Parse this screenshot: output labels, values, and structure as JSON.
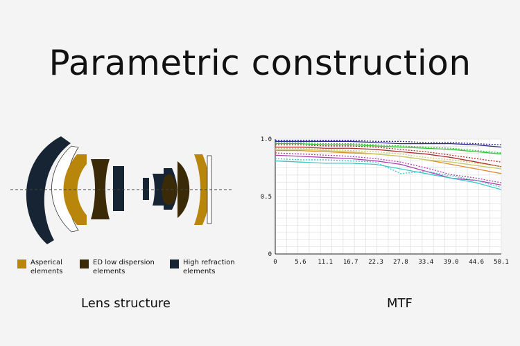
{
  "title": "Parametric construction",
  "legend": [
    {
      "label": "Asperical\nelements",
      "color": "#b8860b"
    },
    {
      "label": "ED low dispersion\nelements",
      "color": "#3a2a08"
    },
    {
      "label": "High refraction\nelements",
      "color": "#172433"
    }
  ],
  "captions": {
    "lens": "Lens structure",
    "mtf": "MTF"
  },
  "chart_data": {
    "type": "line",
    "title": "MTF",
    "x_ticks": [
      "0",
      "5.6",
      "11.1",
      "16.7",
      "22.3",
      "27.8",
      "33.4",
      "39.0",
      "44.6",
      "50.1"
    ],
    "y_ticks": [
      "0",
      "0.5",
      "1.0"
    ],
    "xlim": [
      0,
      50.1
    ],
    "ylim": [
      0,
      1.0
    ],
    "grid": true,
    "x": [
      0,
      5.6,
      11.1,
      16.7,
      22.3,
      27.8,
      33.4,
      39.0,
      44.6,
      50.1
    ],
    "series": [
      {
        "color": "#2e2a8c",
        "style": "solid",
        "values": [
          0.98,
          0.98,
          0.98,
          0.98,
          0.97,
          0.96,
          0.96,
          0.96,
          0.95,
          0.93
        ]
      },
      {
        "color": "#2e2a8c",
        "style": "dotted",
        "values": [
          0.99,
          0.99,
          0.99,
          0.99,
          0.98,
          0.98,
          0.97,
          0.97,
          0.96,
          0.95
        ]
      },
      {
        "color": "#35c23a",
        "style": "solid",
        "values": [
          0.96,
          0.96,
          0.95,
          0.95,
          0.94,
          0.93,
          0.92,
          0.91,
          0.89,
          0.87
        ]
      },
      {
        "color": "#35c23a",
        "style": "dotted",
        "values": [
          0.97,
          0.97,
          0.96,
          0.96,
          0.95,
          0.94,
          0.93,
          0.92,
          0.9,
          0.88
        ]
      },
      {
        "color": "#b02a2a",
        "style": "solid",
        "values": [
          0.93,
          0.93,
          0.92,
          0.92,
          0.91,
          0.89,
          0.87,
          0.84,
          0.8,
          0.76
        ]
      },
      {
        "color": "#b02a2a",
        "style": "dotted",
        "values": [
          0.95,
          0.95,
          0.94,
          0.94,
          0.93,
          0.91,
          0.89,
          0.86,
          0.83,
          0.8
        ]
      },
      {
        "color": "#e08a2a",
        "style": "solid",
        "values": [
          0.9,
          0.9,
          0.89,
          0.88,
          0.87,
          0.85,
          0.82,
          0.78,
          0.74,
          0.7
        ]
      },
      {
        "color": "#c8c86a",
        "style": "solid",
        "values": [
          0.91,
          0.91,
          0.9,
          0.89,
          0.87,
          0.85,
          0.82,
          0.8,
          0.77,
          0.74
        ]
      },
      {
        "color": "#c8c86a",
        "style": "dotted",
        "values": [
          0.92,
          0.92,
          0.91,
          0.9,
          0.89,
          0.87,
          0.84,
          0.82,
          0.79,
          0.76
        ]
      },
      {
        "color": "#b03ab0",
        "style": "solid",
        "values": [
          0.86,
          0.85,
          0.84,
          0.83,
          0.81,
          0.78,
          0.72,
          0.66,
          0.64,
          0.6
        ]
      },
      {
        "color": "#b03ab0",
        "style": "dotted",
        "values": [
          0.88,
          0.87,
          0.86,
          0.85,
          0.83,
          0.8,
          0.75,
          0.69,
          0.66,
          0.62
        ]
      },
      {
        "color": "#3ac8c8",
        "style": "solid",
        "values": [
          0.81,
          0.8,
          0.79,
          0.79,
          0.78,
          0.74,
          0.7,
          0.66,
          0.62,
          0.56
        ]
      },
      {
        "color": "#3ac8c8",
        "style": "dotted",
        "values": [
          0.83,
          0.82,
          0.82,
          0.81,
          0.8,
          0.7,
          0.72,
          0.68,
          0.64,
          0.58
        ]
      }
    ]
  }
}
